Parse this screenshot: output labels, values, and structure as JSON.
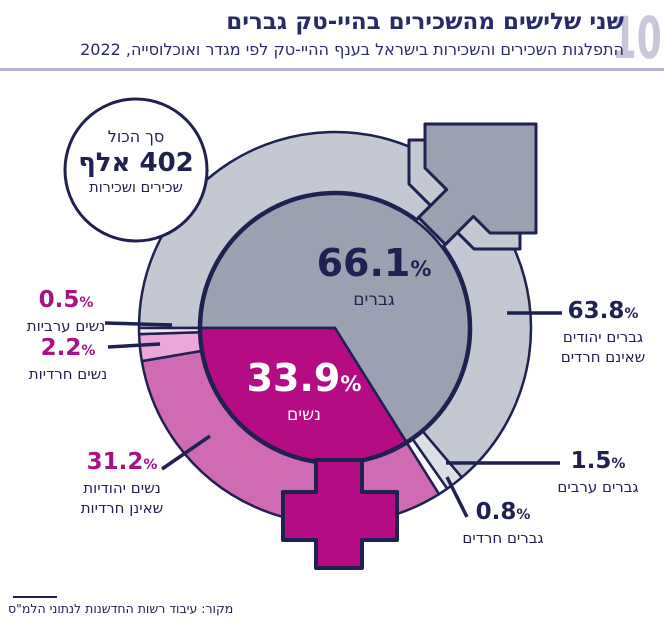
{
  "page": {
    "number": "10",
    "title": "שני שלישים מהשכירים בהיי-טק גברים",
    "subtitle": "התפלגות השכירים והשכירות בישראל בענף ההיי-טק לפי מגדר ואוכלוסייה, 2022",
    "source": "מקור: עיבוד רשות החדשנות לנתוני הלמ\"ס",
    "percent_sign": "%"
  },
  "total_badge": {
    "line1": "סך הכול",
    "line2": "402 אלף",
    "line3": "שכירים ושכירות"
  },
  "chart_data": {
    "type": "pie",
    "title": "שני שלישים מהשכירים בהיי-טק גברים",
    "subtitle": "התפלגות השכירים והשכירות בישראל בענף ההיי-טק לפי מגדר ואוכלוסייה, 2022",
    "total_label": "402 אלף שכירים ושכירות",
    "units": "%",
    "start_angle_deg": 270,
    "direction": "clockwise",
    "legend_position": "callouts",
    "inner_series": [
      {
        "id": "men",
        "name": "גברים",
        "value": 66.1,
        "color": "#9ba1b0",
        "text_color": "#1f2150"
      },
      {
        "id": "women",
        "name": "נשים",
        "value": 33.9,
        "color": "#b50c84",
        "text_color": "#ffffff"
      }
    ],
    "outer_series": [
      {
        "id": "men-jewish",
        "label": "גברים יהודים שאינם חרדים",
        "label_line1": "גברים יהודים",
        "label_line2": "שאינם חרדים",
        "value": 63.8,
        "color": "#c4c8d3"
      },
      {
        "id": "men-arab",
        "label": "גברים ערבים",
        "label_line1": "גברים ערבים",
        "value": 1.5,
        "color": "#dcdfe6"
      },
      {
        "id": "men-haredi",
        "label": "גברים חרדים",
        "label_line1": "גברים חרדים",
        "value": 0.8,
        "color": "#fbfbfd"
      },
      {
        "id": "women-jewish",
        "label": "נשים יהודיות שאינן חרדיות",
        "label_line1": "נשים יהודיות",
        "label_line2": "שאינן חרדיות",
        "value": 31.2,
        "color": "#cf6ab3"
      },
      {
        "id": "women-haredi",
        "label": "נשים חרדיות",
        "label_line1": "נשים חרדיות",
        "value": 2.2,
        "color": "#eba8d6"
      },
      {
        "id": "women-arab",
        "label": "נשים ערביות",
        "label_line1": "נשים ערביות",
        "value": 0.5,
        "color": "#f8e4f0"
      }
    ],
    "outline_color": "#1f2150"
  }
}
